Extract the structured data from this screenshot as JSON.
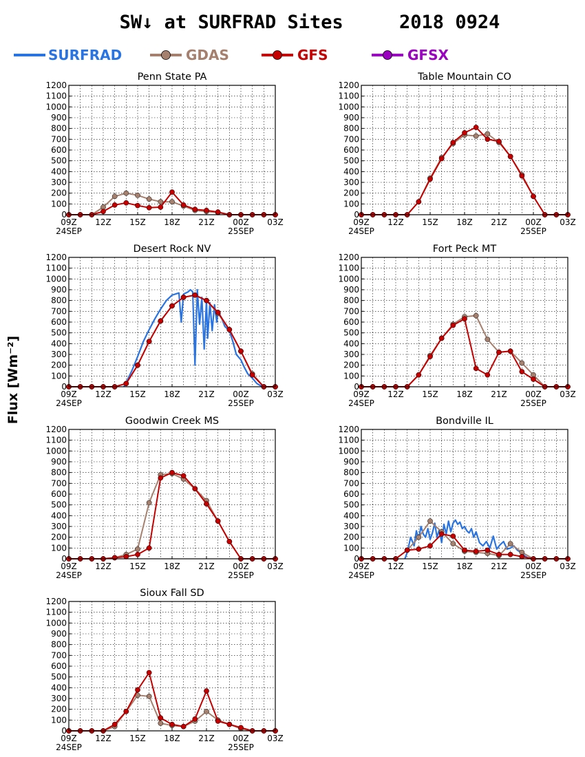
{
  "title": "SW↓ at SURFRAD Sites     2018 0924",
  "ylabel": "Flux [Wm⁻²]",
  "legend": [
    {
      "name": "SURFRAD",
      "color": "#2a74e2",
      "marker": false
    },
    {
      "name": "GDAS",
      "color": "#a6806e",
      "marker": true
    },
    {
      "name": "GFS",
      "color": "#c40000",
      "marker": true
    },
    {
      "name": "GFSX",
      "color": "#9a00c0",
      "marker": true
    }
  ],
  "chart_data": [
    {
      "type": "line",
      "title": "Penn State PA",
      "xlim": [
        0,
        18
      ],
      "ylim": [
        0,
        1200
      ],
      "x_ticks": [
        "09Z",
        "12Z",
        "15Z",
        "18Z",
        "21Z",
        "00Z",
        "03Z"
      ],
      "date_labels": [
        "24SEP",
        "25SEP"
      ],
      "y_ticks": [
        "0",
        "100",
        "200",
        "300",
        "400",
        "500",
        "600",
        "700",
        "800",
        "900",
        "1000",
        "1100",
        "1200"
      ],
      "series": [
        {
          "name": "GDAS",
          "color": "#a6806e",
          "x": [
            0,
            1,
            2,
            3,
            4,
            5,
            6,
            7,
            8,
            9,
            10,
            11,
            12,
            13,
            14,
            15,
            16,
            17,
            18
          ],
          "values": [
            0,
            0,
            0,
            70,
            170,
            200,
            180,
            145,
            120,
            120,
            80,
            40,
            30,
            20,
            0,
            0,
            0,
            0,
            0
          ]
        },
        {
          "name": "GFS",
          "color": "#c40000",
          "x": [
            0,
            1,
            2,
            3,
            4,
            5,
            6,
            7,
            8,
            9,
            10,
            11,
            12,
            13,
            14,
            15,
            16,
            17,
            18
          ],
          "values": [
            0,
            0,
            0,
            30,
            90,
            110,
            85,
            65,
            70,
            210,
            90,
            50,
            40,
            25,
            0,
            0,
            0,
            0,
            0
          ]
        }
      ]
    },
    {
      "type": "line",
      "title": "Table Mountain CO",
      "xlim": [
        0,
        18
      ],
      "ylim": [
        0,
        1200
      ],
      "x_ticks": [
        "09Z",
        "12Z",
        "15Z",
        "18Z",
        "21Z",
        "00Z",
        "03Z"
      ],
      "date_labels": [
        "24SEP",
        "25SEP"
      ],
      "y_ticks": [
        "0",
        "100",
        "200",
        "300",
        "400",
        "500",
        "600",
        "700",
        "800",
        "900",
        "1000",
        "1100",
        "1200"
      ],
      "series": [
        {
          "name": "GDAS",
          "color": "#a6806e",
          "x": [
            0,
            1,
            2,
            3,
            4,
            5,
            6,
            7,
            8,
            9,
            10,
            11,
            12,
            13,
            14,
            15,
            16,
            17,
            18
          ],
          "values": [
            0,
            0,
            0,
            0,
            0,
            120,
            340,
            530,
            660,
            740,
            730,
            750,
            670,
            540,
            370,
            170,
            0,
            0,
            0
          ]
        },
        {
          "name": "GFS",
          "color": "#c40000",
          "x": [
            0,
            1,
            2,
            3,
            4,
            5,
            6,
            7,
            8,
            9,
            10,
            11,
            12,
            13,
            14,
            15,
            16,
            17,
            18
          ],
          "values": [
            0,
            0,
            0,
            0,
            0,
            120,
            330,
            520,
            670,
            760,
            810,
            700,
            680,
            540,
            360,
            170,
            0,
            0,
            0
          ]
        }
      ]
    },
    {
      "type": "line",
      "title": "Desert Rock NV",
      "xlim": [
        0,
        18
      ],
      "ylim": [
        0,
        1200
      ],
      "x_ticks": [
        "09Z",
        "12Z",
        "15Z",
        "18Z",
        "21Z",
        "00Z",
        "03Z"
      ],
      "date_labels": [
        "24SEP",
        "25SEP"
      ],
      "y_ticks": [
        "0",
        "100",
        "200",
        "300",
        "400",
        "500",
        "600",
        "700",
        "800",
        "900",
        "1000",
        "1100",
        "1200"
      ],
      "series": [
        {
          "name": "SURFRAD",
          "color": "#2a74e2",
          "x": [
            4.8,
            5,
            5.5,
            6,
            6.5,
            7,
            7.5,
            8,
            8.5,
            9,
            9.6,
            9.8,
            10,
            10.2,
            10.4,
            10.6,
            10.8,
            11,
            11.2,
            11.4,
            11.6,
            11.8,
            12,
            12.1,
            12.3,
            12.5,
            12.7,
            12.9,
            13,
            13.3,
            13.6,
            14,
            14.3,
            14.6,
            15,
            15.3,
            15.6,
            16,
            16.4,
            16.8,
            17.1
          ],
          "values": [
            0,
            40,
            150,
            280,
            420,
            530,
            630,
            720,
            800,
            850,
            870,
            600,
            860,
            870,
            880,
            900,
            880,
            200,
            900,
            580,
            830,
            350,
            800,
            450,
            780,
            520,
            760,
            600,
            700,
            640,
            560,
            520,
            420,
            300,
            250,
            180,
            120,
            80,
            30,
            5,
            0
          ]
        },
        {
          "name": "GDAS",
          "color": "#a6806e",
          "x": [
            0,
            1,
            2,
            3,
            4,
            5,
            6,
            7,
            8,
            9,
            10,
            11,
            12,
            13,
            14,
            15,
            16,
            17,
            18
          ],
          "values": [
            0,
            0,
            0,
            0,
            0,
            30,
            200,
            420,
            610,
            750,
            830,
            850,
            800,
            680,
            530,
            330,
            120,
            0,
            0
          ]
        },
        {
          "name": "GFS",
          "color": "#c40000",
          "x": [
            0,
            1,
            2,
            3,
            4,
            5,
            6,
            7,
            8,
            9,
            10,
            11,
            12,
            13,
            14,
            15,
            16,
            17,
            18
          ],
          "values": [
            0,
            0,
            0,
            0,
            0,
            30,
            200,
            420,
            610,
            750,
            830,
            850,
            800,
            690,
            530,
            330,
            110,
            0,
            0
          ]
        }
      ]
    },
    {
      "type": "line",
      "title": "Fort Peck MT",
      "xlim": [
        0,
        18
      ],
      "ylim": [
        0,
        1200
      ],
      "x_ticks": [
        "09Z",
        "12Z",
        "15Z",
        "18Z",
        "21Z",
        "00Z",
        "03Z"
      ],
      "date_labels": [
        "24SEP",
        "25SEP"
      ],
      "y_ticks": [
        "0",
        "100",
        "200",
        "300",
        "400",
        "500",
        "600",
        "700",
        "800",
        "900",
        "1000",
        "1100",
        "1200"
      ],
      "series": [
        {
          "name": "GDAS",
          "color": "#a6806e",
          "x": [
            0,
            1,
            2,
            3,
            4,
            5,
            6,
            7,
            8,
            9,
            10,
            11,
            12,
            13,
            14,
            15,
            16,
            17,
            18
          ],
          "values": [
            0,
            0,
            0,
            0,
            0,
            110,
            290,
            450,
            580,
            650,
            660,
            440,
            320,
            330,
            220,
            110,
            0,
            0,
            0
          ]
        },
        {
          "name": "GFS",
          "color": "#c40000",
          "x": [
            0,
            1,
            2,
            3,
            4,
            5,
            6,
            7,
            8,
            9,
            10,
            11,
            12,
            13,
            14,
            15,
            16,
            17,
            18
          ],
          "values": [
            0,
            0,
            0,
            0,
            0,
            110,
            280,
            450,
            570,
            630,
            170,
            110,
            320,
            330,
            140,
            70,
            0,
            0,
            0
          ]
        }
      ]
    },
    {
      "type": "line",
      "title": "Goodwin Creek MS",
      "xlim": [
        0,
        18
      ],
      "ylim": [
        0,
        1200
      ],
      "x_ticks": [
        "09Z",
        "12Z",
        "15Z",
        "18Z",
        "21Z",
        "00Z",
        "03Z"
      ],
      "date_labels": [
        "24SEP",
        "25SEP"
      ],
      "y_ticks": [
        "0",
        "100",
        "200",
        "300",
        "400",
        "500",
        "600",
        "700",
        "800",
        "900",
        "1000",
        "1100",
        "1200"
      ],
      "series": [
        {
          "name": "GDAS",
          "color": "#a6806e",
          "x": [
            0,
            1,
            2,
            3,
            4,
            5,
            6,
            7,
            8,
            9,
            10,
            11,
            12,
            13,
            14,
            15,
            16,
            17,
            18
          ],
          "values": [
            0,
            0,
            0,
            0,
            10,
            40,
            90,
            520,
            780,
            790,
            740,
            650,
            540,
            350,
            160,
            0,
            0,
            0,
            0
          ]
        },
        {
          "name": "GFS",
          "color": "#c40000",
          "x": [
            0,
            1,
            2,
            3,
            4,
            5,
            6,
            7,
            8,
            9,
            10,
            11,
            12,
            13,
            14,
            15,
            16,
            17,
            18
          ],
          "values": [
            0,
            0,
            0,
            0,
            10,
            20,
            40,
            100,
            750,
            800,
            770,
            650,
            510,
            350,
            160,
            0,
            0,
            0,
            0
          ]
        }
      ]
    },
    {
      "type": "line",
      "title": "Bondville IL",
      "xlim": [
        0,
        18
      ],
      "ylim": [
        0,
        1200
      ],
      "x_ticks": [
        "09Z",
        "12Z",
        "15Z",
        "18Z",
        "21Z",
        "00Z",
        "03Z"
      ],
      "date_labels": [
        "24SEP",
        "25SEP"
      ],
      "y_ticks": [
        "0",
        "100",
        "200",
        "300",
        "400",
        "500",
        "600",
        "700",
        "800",
        "900",
        "1000",
        "1100",
        "1200"
      ],
      "series": [
        {
          "name": "SURFRAD",
          "color": "#2a74e2",
          "x": [
            3.8,
            4.0,
            4.3,
            4.6,
            4.8,
            5.0,
            5.2,
            5.4,
            5.6,
            5.8,
            6.0,
            6.2,
            6.4,
            6.6,
            6.8,
            7.0,
            7.2,
            7.4,
            7.6,
            7.8,
            8.0,
            8.2,
            8.4,
            8.6,
            8.8,
            9.0,
            9.2,
            9.4,
            9.6,
            9.8,
            10.0,
            10.3,
            10.6,
            10.9,
            11.2,
            11.5,
            11.8,
            12.1,
            12.4,
            12.7,
            13.0,
            13.3,
            13.6,
            13.9,
            14.2,
            14.5,
            14.8
          ],
          "values": [
            0,
            60,
            200,
            120,
            260,
            180,
            300,
            230,
            200,
            280,
            180,
            240,
            330,
            200,
            270,
            150,
            320,
            230,
            350,
            250,
            330,
            360,
            320,
            340,
            280,
            300,
            260,
            240,
            280,
            200,
            250,
            150,
            120,
            160,
            100,
            210,
            90,
            130,
            160,
            90,
            100,
            120,
            80,
            60,
            30,
            10,
            0
          ]
        },
        {
          "name": "GDAS",
          "color": "#a6806e",
          "x": [
            0,
            1,
            2,
            3,
            4,
            5,
            6,
            7,
            8,
            9,
            10,
            11,
            12,
            13,
            14,
            15,
            16,
            17,
            18
          ],
          "values": [
            0,
            0,
            0,
            0,
            80,
            200,
            350,
            250,
            140,
            70,
            60,
            50,
            30,
            140,
            60,
            0,
            0,
            0,
            0
          ]
        },
        {
          "name": "GFS",
          "color": "#c40000",
          "x": [
            0,
            1,
            2,
            3,
            4,
            5,
            6,
            7,
            8,
            9,
            10,
            11,
            12,
            13,
            14,
            15,
            16,
            17,
            18
          ],
          "values": [
            0,
            0,
            0,
            0,
            80,
            90,
            120,
            230,
            210,
            80,
            70,
            80,
            40,
            40,
            20,
            0,
            0,
            0,
            0
          ]
        }
      ]
    },
    {
      "type": "line",
      "title": "Sioux Fall SD",
      "xlim": [
        0,
        18
      ],
      "ylim": [
        0,
        1200
      ],
      "x_ticks": [
        "09Z",
        "12Z",
        "15Z",
        "18Z",
        "21Z",
        "00Z",
        "03Z"
      ],
      "date_labels": [
        "24SEP",
        "25SEP"
      ],
      "y_ticks": [
        "0",
        "100",
        "200",
        "300",
        "400",
        "500",
        "600",
        "700",
        "800",
        "900",
        "1000",
        "1100",
        "1200"
      ],
      "series": [
        {
          "name": "GDAS",
          "color": "#a6806e",
          "x": [
            0,
            1,
            2,
            3,
            4,
            5,
            6,
            7,
            8,
            9,
            10,
            11,
            12,
            13,
            14,
            15,
            16,
            17,
            18
          ],
          "values": [
            0,
            0,
            0,
            0,
            40,
            180,
            330,
            320,
            70,
            50,
            40,
            90,
            180,
            100,
            60,
            20,
            0,
            0,
            0
          ]
        },
        {
          "name": "GFS",
          "color": "#c40000",
          "x": [
            0,
            1,
            2,
            3,
            4,
            5,
            6,
            7,
            8,
            9,
            10,
            11,
            12,
            13,
            14,
            15,
            16,
            17,
            18
          ],
          "values": [
            0,
            0,
            0,
            0,
            60,
            180,
            380,
            540,
            120,
            60,
            40,
            110,
            370,
            90,
            60,
            30,
            0,
            0,
            0
          ]
        }
      ]
    }
  ]
}
